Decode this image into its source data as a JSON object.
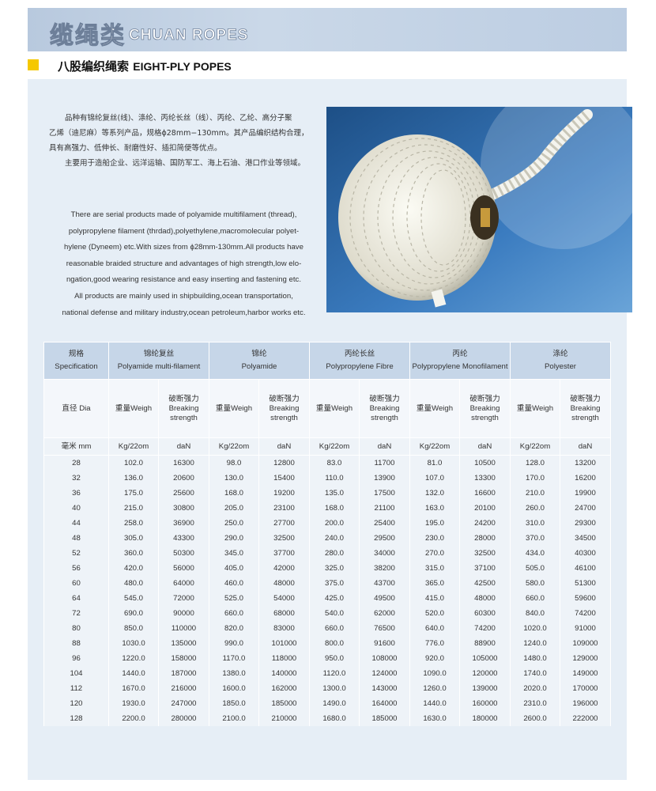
{
  "header": {
    "title_cn": "缆绳类",
    "title_en": "CHUAN ROPES"
  },
  "section": {
    "title_cn": "八股编织绳索",
    "title_en": "EIGHT-PLY POPES"
  },
  "intro": {
    "cn": [
      "品种有锦纶复丝(线)、涤纶、丙纶长丝（线）、丙纶、乙纶、高分子聚",
      "乙烯（迪尼麻）等系列产品，规格ϕ28mm−130mm。其产品编织结构合理，",
      "具有高强力、低伸长、耐磨性好、插扣简便等优点。",
      "主要用于造船企业、远洋运输、国防军工、海上石油、港口作业等领域。"
    ],
    "en": [
      "There are serial products made of polyamide multifilament (thread),",
      "polypropylene filament (thrdad),polyethylene,macromolecular polyet-",
      "hylene (Dyneem) etc.With sizes from ϕ28mm-130mm.All products have",
      "reasonable braided structure and advantages of high strength,low elo-",
      "ngation,good wearing resistance and easy  inserting and fastening etc.",
      "All products are mainly used in shipbuilding,ocean transportation,",
      "national defense and military industry,ocean petroleum,harbor works etc."
    ]
  },
  "table": {
    "groups": [
      {
        "cn": "规格",
        "en": "Specification"
      },
      {
        "cn": "锦纶复丝",
        "en": "Polyamide multi-filament"
      },
      {
        "cn": "锦纶",
        "en": "Polyamide"
      },
      {
        "cn": "丙纶长丝",
        "en": "Polypropylene Fibre"
      },
      {
        "cn": "丙纶",
        "en": "Polypropylene Monofilament"
      },
      {
        "cn": "涤纶",
        "en": "Polyester"
      }
    ],
    "subheaders": [
      {
        "cn": "直径 Dia"
      },
      {
        "cn": "重量Weigh"
      },
      {
        "cn": "破断强力",
        "en": "Breaking strength"
      },
      {
        "cn": "重量Weigh"
      },
      {
        "cn": "破断强力",
        "en": "Breaking strength"
      },
      {
        "cn": "重量Weigh"
      },
      {
        "cn": "破断强力",
        "en": "Breaking strength"
      },
      {
        "cn": "重量Weigh"
      },
      {
        "cn": "破断强力",
        "en": "Breaking strength"
      },
      {
        "cn": "重量Weigh"
      },
      {
        "cn": "破断强力",
        "en": "Breaking strength"
      }
    ],
    "units": [
      "毫米 mm",
      "Kg/22om",
      "daN",
      "Kg/22om",
      "daN",
      "Kg/22om",
      "daN",
      "Kg/22om",
      "daN",
      "Kg/22om",
      "daN"
    ],
    "rows": [
      [
        "28",
        "102.0",
        "16300",
        "98.0",
        "12800",
        "83.0",
        "11700",
        "81.0",
        "10500",
        "128.0",
        "13200"
      ],
      [
        "32",
        "136.0",
        "20600",
        "130.0",
        "15400",
        "110.0",
        "13900",
        "107.0",
        "13300",
        "170.0",
        "16200"
      ],
      [
        "36",
        "175.0",
        "25600",
        "168.0",
        "19200",
        "135.0",
        "17500",
        "132.0",
        "16600",
        "210.0",
        "19900"
      ],
      [
        "40",
        "215.0",
        "30800",
        "205.0",
        "23100",
        "168.0",
        "21100",
        "163.0",
        "20100",
        "260.0",
        "24700"
      ],
      [
        "44",
        "258.0",
        "36900",
        "250.0",
        "27700",
        "200.0",
        "25400",
        "195.0",
        "24200",
        "310.0",
        "29300"
      ],
      [
        "48",
        "305.0",
        "43300",
        "290.0",
        "32500",
        "240.0",
        "29500",
        "230.0",
        "28000",
        "370.0",
        "34500"
      ],
      [
        "52",
        "360.0",
        "50300",
        "345.0",
        "37700",
        "280.0",
        "34000",
        "270.0",
        "32500",
        "434.0",
        "40300"
      ],
      [
        "56",
        "420.0",
        "56000",
        "405.0",
        "42000",
        "325.0",
        "38200",
        "315.0",
        "37100",
        "505.0",
        "46100"
      ],
      [
        "60",
        "480.0",
        "64000",
        "460.0",
        "48000",
        "375.0",
        "43700",
        "365.0",
        "42500",
        "580.0",
        "51300"
      ],
      [
        "64",
        "545.0",
        "72000",
        "525.0",
        "54000",
        "425.0",
        "49500",
        "415.0",
        "48000",
        "660.0",
        "59600"
      ],
      [
        "72",
        "690.0",
        "90000",
        "660.0",
        "68000",
        "540.0",
        "62000",
        "520.0",
        "60300",
        "840.0",
        "74200"
      ],
      [
        "80",
        "850.0",
        "110000",
        "820.0",
        "83000",
        "660.0",
        "76500",
        "640.0",
        "74200",
        "1020.0",
        "91000"
      ],
      [
        "88",
        "1030.0",
        "135000",
        "990.0",
        "101000",
        "800.0",
        "91600",
        "776.0",
        "88900",
        "1240.0",
        "109000"
      ],
      [
        "96",
        "1220.0",
        "158000",
        "1170.0",
        "118000",
        "950.0",
        "108000",
        "920.0",
        "105000",
        "1480.0",
        "129000"
      ],
      [
        "104",
        "1440.0",
        "187000",
        "1380.0",
        "140000",
        "1120.0",
        "124000",
        "1090.0",
        "120000",
        "1740.0",
        "149000"
      ],
      [
        "112",
        "1670.0",
        "216000",
        "1600.0",
        "162000",
        "1300.0",
        "143000",
        "1260.0",
        "139000",
        "2020.0",
        "170000"
      ],
      [
        "120",
        "1930.0",
        "247000",
        "1850.0",
        "185000",
        "1490.0",
        "164000",
        "1440.0",
        "160000",
        "2310.0",
        "196000"
      ],
      [
        "128",
        "2200.0",
        "280000",
        "2100.0",
        "210000",
        "1680.0",
        "185000",
        "1630.0",
        "180000",
        "2600.0",
        "222000"
      ]
    ]
  }
}
